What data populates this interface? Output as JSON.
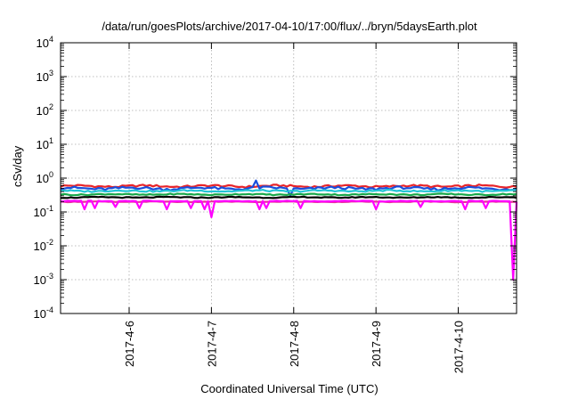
{
  "chart_data": {
    "type": "line",
    "title": "/data/run/goesPlots/archive/2017-04-10/17:00/flux/../bryn/5daysEarth.plot",
    "xlabel": "Coordinated Universal Time (UTC)",
    "ylabel": "cSv/day",
    "y_scale": "log",
    "ylim": [
      0.0001,
      10000
    ],
    "xlim": [
      "2017-04-05 04:00",
      "2017-04-10 17:00"
    ],
    "y_ticks": [
      {
        "value": 0.0001,
        "base": "10",
        "exp": "-4"
      },
      {
        "value": 0.001,
        "base": "10",
        "exp": "-3"
      },
      {
        "value": 0.01,
        "base": "10",
        "exp": "-2"
      },
      {
        "value": 0.1,
        "base": "10",
        "exp": "-1"
      },
      {
        "value": 1,
        "base": "10",
        "exp": "0"
      },
      {
        "value": 10,
        "base": "10",
        "exp": "1"
      },
      {
        "value": 100,
        "base": "10",
        "exp": "2"
      },
      {
        "value": 1000,
        "base": "10",
        "exp": "3"
      },
      {
        "value": 10000,
        "base": "10",
        "exp": "4"
      }
    ],
    "x_ticks": [
      {
        "label": "2017-4-6",
        "date": "2017-04-06 00:00"
      },
      {
        "label": "2017-4-7",
        "date": "2017-04-07 00:00"
      },
      {
        "label": "2017-4-8",
        "date": "2017-04-08 00:00"
      },
      {
        "label": "2017-4-9",
        "date": "2017-04-09 00:00"
      },
      {
        "label": "2017-4-10",
        "date": "2017-04-10 00:00"
      }
    ],
    "grid": true,
    "legend": "none",
    "series": [
      {
        "color": "#e8242a",
        "level": 0.58,
        "jitter": 0.07,
        "dips": []
      },
      {
        "color": "#1a4fdc",
        "level": 0.5,
        "jitter": 0.09,
        "dips": [
          [
            "2017-04-07 13:00",
            0.85
          ],
          [
            "2017-04-07 23:00",
            0.3
          ]
        ]
      },
      {
        "color": "#22c4d4",
        "level": 0.42,
        "jitter": 0.05,
        "dips": []
      },
      {
        "color": "#18a84a",
        "level": 0.33,
        "jitter": 0.04,
        "dips": []
      },
      {
        "color": "#000000",
        "level": 0.27,
        "jitter": 0.03,
        "dips": []
      },
      {
        "color": "#e8329c",
        "level": 0.2,
        "jitter": 0.02,
        "dips": []
      },
      {
        "color": "#ff00ff",
        "level": 0.21,
        "jitter": 0.02,
        "dips": [
          [
            "2017-04-05 11:00",
            0.12
          ],
          [
            "2017-04-05 14:00",
            0.13
          ],
          [
            "2017-04-05 20:00",
            0.14
          ],
          [
            "2017-04-06 03:00",
            0.13
          ],
          [
            "2017-04-06 11:00",
            0.12
          ],
          [
            "2017-04-06 18:00",
            0.13
          ],
          [
            "2017-04-06 22:00",
            0.12
          ],
          [
            "2017-04-07 00:00",
            0.07
          ],
          [
            "2017-04-07 14:00",
            0.12
          ],
          [
            "2017-04-07 16:00",
            0.13
          ],
          [
            "2017-04-08 02:00",
            0.13
          ],
          [
            "2017-04-09 00:00",
            0.12
          ],
          [
            "2017-04-09 13:00",
            0.14
          ],
          [
            "2017-04-10 02:00",
            0.12
          ],
          [
            "2017-04-10 08:00",
            0.13
          ],
          [
            "2017-04-10 16:00",
            0.001
          ]
        ]
      }
    ]
  }
}
